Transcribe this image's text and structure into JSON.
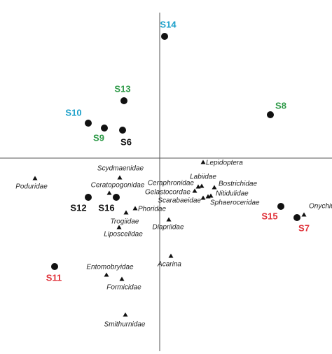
{
  "chart_data": {
    "type": "scatter",
    "xlim": [
      -2.28,
      2.46
    ],
    "ylim": [
      -2.8,
      2.26
    ],
    "axis_color": "#555555",
    "sites": {
      "labels": [
        "S14",
        "S13",
        "S10",
        "S9",
        "S6",
        "S8",
        "S12",
        "S16",
        "S15",
        "S7",
        "S11"
      ],
      "x": [
        0.07,
        -0.51,
        -1.02,
        -0.79,
        -0.53,
        1.58,
        -1.02,
        -0.62,
        1.73,
        1.96,
        -1.5
      ],
      "y": [
        1.74,
        0.82,
        0.5,
        0.43,
        0.4,
        0.62,
        -0.56,
        -0.56,
        -0.69,
        -0.85,
        -1.55
      ],
      "colors": [
        "#1a9fc9",
        "#2e9a48",
        "#1a9fc9",
        "#2e9a48",
        "#111111",
        "#2e9a48",
        "#111111",
        "#111111",
        "#e0323a",
        "#e0323a",
        "#e0323a"
      ],
      "marker_color": "#111111"
    },
    "taxa": {
      "labels": [
        "Lepidoptera",
        "Poduridae",
        "Scydmaenidae",
        "Ceratopogonidae",
        "Phoridae",
        "Trogiidae",
        "Liposcelidae",
        "Labiidae",
        "Ceraphronidae",
        "Gelastocordae",
        "Bostrichidae",
        "Nitidulidae",
        "Scarabaeidae",
        "Sphaeroceridae",
        "Diapriidae",
        "Onychiuridae",
        "Acarina",
        "Entomobryidae",
        "Formicidae",
        "Smithurnidae"
      ],
      "x": [
        0.62,
        -1.78,
        -0.57,
        -0.72,
        -0.35,
        -0.48,
        -0.58,
        0.6,
        0.55,
        0.5,
        0.78,
        0.73,
        0.62,
        0.69,
        0.13,
        2.06,
        0.16,
        -0.76,
        -0.54,
        -0.49
      ],
      "y": [
        -0.06,
        -0.29,
        -0.28,
        -0.5,
        -0.72,
        -0.78,
        -0.99,
        -0.4,
        -0.41,
        -0.47,
        -0.42,
        -0.54,
        -0.57,
        -0.55,
        -0.88,
        -0.81,
        -1.4,
        -1.67,
        -1.73,
        -2.24
      ],
      "marker_color": "#111111"
    }
  }
}
